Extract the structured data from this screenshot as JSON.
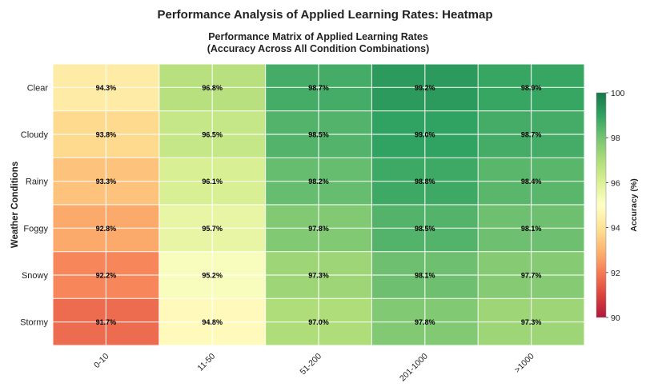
{
  "figure_title": "Performance Analysis of Applied Learning Rates: Heatmap",
  "chart_data": {
    "type": "heatmap",
    "title_lines": [
      "Performance Matrix of Applied Learning Rates",
      "(Accuracy Across All Condition Combinations)"
    ],
    "xlabel": "",
    "ylabel": "Weather Conditions",
    "x_categories": [
      "0-10",
      "11-50",
      "51-200",
      "201-1000",
      ">1000"
    ],
    "y_categories": [
      "Clear",
      "Cloudy",
      "Rainy",
      "Foggy",
      "Snowy",
      "Stormy"
    ],
    "values": [
      [
        94.3,
        96.8,
        98.7,
        99.2,
        98.9
      ],
      [
        93.8,
        96.5,
        98.5,
        99.0,
        98.7
      ],
      [
        93.3,
        96.1,
        98.2,
        98.8,
        98.4
      ],
      [
        92.8,
        95.7,
        97.8,
        98.5,
        98.1
      ],
      [
        92.2,
        95.2,
        97.3,
        98.1,
        97.7
      ],
      [
        91.7,
        94.8,
        97.0,
        97.8,
        97.3
      ]
    ],
    "value_labels": [
      [
        "94.3%",
        "96.8%",
        "98.7%",
        "99.2%",
        "98.9%"
      ],
      [
        "93.8%",
        "96.5%",
        "98.5%",
        "99.0%",
        "98.7%"
      ],
      [
        "93.3%",
        "96.1%",
        "98.2%",
        "98.8%",
        "98.4%"
      ],
      [
        "92.8%",
        "95.7%",
        "97.8%",
        "98.5%",
        "98.1%"
      ],
      [
        "92.2%",
        "95.2%",
        "97.3%",
        "98.1%",
        "97.7%"
      ],
      [
        "91.7%",
        "94.8%",
        "97.0%",
        "97.8%",
        "97.3%"
      ]
    ],
    "colorbar": {
      "label": "Accuracy (%)",
      "vmin": 90,
      "vmax": 100,
      "ticks": [
        "90",
        "92",
        "94",
        "96",
        "98",
        "100"
      ],
      "colormap": "RdYlGn"
    },
    "grid": true
  }
}
